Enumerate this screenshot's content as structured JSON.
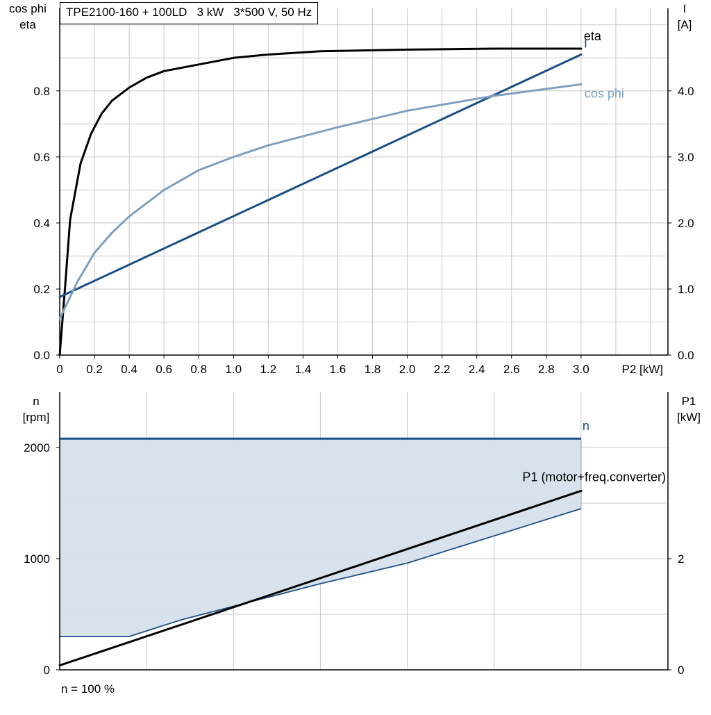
{
  "colors": {
    "eta": "#000000",
    "current": "#1a4f86",
    "cosphi": "#7f9fbf",
    "speed": "#1a4f86",
    "p1": "#000000",
    "band_fill": "#d6e0eb",
    "grid": "#c8c8c8"
  },
  "title": "TPE2100-160 + 100LD   3 kW   3*500 V, 50 Hz",
  "footer": "n = 100 %",
  "chart_data": [
    {
      "type": "line",
      "title": "TPE2100-160 + 100LD   3 kW   3*500 V, 50 Hz",
      "xlabel": "P2 [kW]",
      "ylabel": "cos phi\neta",
      "ylabel_lines": [
        "cos phi",
        "eta"
      ],
      "y2label_lines": [
        "I",
        "[A]"
      ],
      "xlim": [
        0,
        3.5
      ],
      "ylim": [
        0,
        1.05
      ],
      "y2lim": [
        0,
        5.25
      ],
      "x_ticks": [
        "0",
        "0.2",
        "0.4",
        "0.6",
        "0.8",
        "1.0",
        "1.2",
        "1.4",
        "1.6",
        "1.8",
        "2.0",
        "2.2",
        "2.4",
        "2.6",
        "2.8",
        "3.0"
      ],
      "y_ticks": [
        "0.0",
        "0.2",
        "0.4",
        "0.6",
        "0.8"
      ],
      "y2_ticks": [
        "0.0",
        "1.0",
        "2.0",
        "3.0",
        "4.0"
      ],
      "grid": true,
      "series": [
        {
          "name": "eta",
          "axis": "left",
          "x": [
            0,
            0.03,
            0.06,
            0.12,
            0.18,
            0.24,
            0.3,
            0.4,
            0.5,
            0.6,
            0.8,
            1.0,
            1.2,
            1.5,
            2.0,
            2.5,
            3.0
          ],
          "y": [
            0.0,
            0.2,
            0.41,
            0.58,
            0.67,
            0.73,
            0.77,
            0.81,
            0.84,
            0.86,
            0.88,
            0.9,
            0.91,
            0.92,
            0.925,
            0.928,
            0.928
          ]
        },
        {
          "name": "I",
          "axis": "right",
          "x": [
            0,
            3.0
          ],
          "y": [
            0.88,
            4.55
          ]
        },
        {
          "name": "cos phi",
          "axis": "left",
          "x": [
            0,
            0.1,
            0.2,
            0.3,
            0.4,
            0.6,
            0.8,
            1.0,
            1.2,
            1.6,
            2.0,
            2.5,
            3.0
          ],
          "y": [
            0.11,
            0.22,
            0.31,
            0.37,
            0.42,
            0.5,
            0.56,
            0.6,
            0.635,
            0.69,
            0.74,
            0.785,
            0.82
          ]
        }
      ]
    },
    {
      "type": "area",
      "xlim": [
        0,
        3.5
      ],
      "ylabel_lines": [
        "n",
        "[rpm]"
      ],
      "y2label_lines": [
        "P1",
        "[kW]"
      ],
      "ylim": [
        0,
        2500
      ],
      "y2lim": [
        0,
        5
      ],
      "y_ticks": [
        "0",
        "1000",
        "2000"
      ],
      "y2_ticks": [
        "0",
        "2"
      ],
      "grid": true,
      "series": [
        {
          "name": "n",
          "axis": "left",
          "x": [
            0,
            3.0
          ],
          "y": [
            2080,
            2080
          ]
        },
        {
          "name": "P1 (motor+freq.converter)",
          "axis": "right",
          "x": [
            0,
            3.0
          ],
          "y": [
            0.08,
            3.22
          ]
        },
        {
          "name": "",
          "axis": "right",
          "role": "lower limit of shaded band",
          "x": [
            0,
            0.4,
            0.7,
            1.5,
            2.0,
            3.0
          ],
          "y": [
            0.6,
            0.6,
            0.9,
            1.55,
            1.92,
            2.9
          ]
        }
      ]
    }
  ]
}
